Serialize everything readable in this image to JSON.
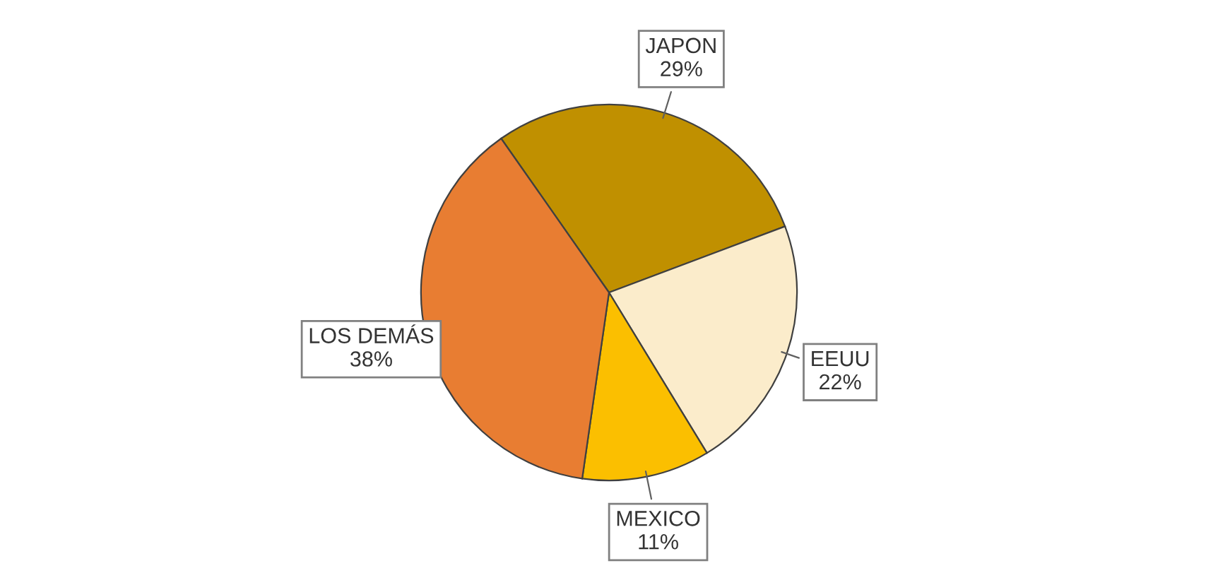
{
  "chart_data": {
    "type": "pie",
    "categories": [
      "JAPON",
      "EEUU",
      "MEXICO",
      "LOS DEMÁS"
    ],
    "values": [
      29,
      22,
      11,
      38
    ],
    "colors": [
      "#c09000",
      "#fbeccb",
      "#fbbf00",
      "#e87d32"
    ],
    "value_labels": [
      "29%",
      "22%",
      "11%",
      "38%"
    ]
  }
}
